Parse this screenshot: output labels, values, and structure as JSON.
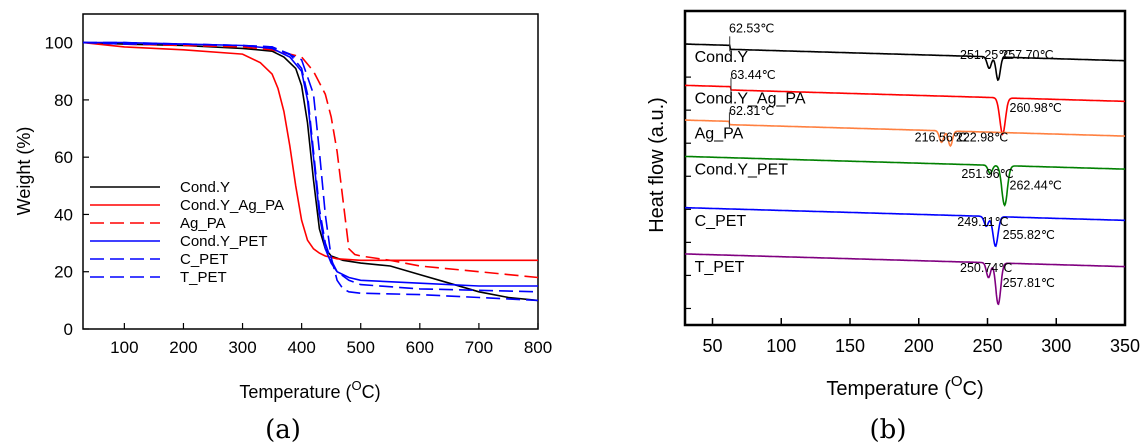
{
  "chart_data": [
    {
      "panel": "(a)",
      "type": "line",
      "xlabel": "Temperature (",
      "xlabel_sup": "O",
      "xlabel_tail": "C)",
      "ylabel": "Weight (%)",
      "xlim": [
        30,
        800
      ],
      "ylim": [
        0,
        110
      ],
      "xticks": [
        100,
        200,
        300,
        400,
        500,
        600,
        700,
        800
      ],
      "yticks": [
        0,
        20,
        40,
        60,
        80,
        100
      ],
      "legend_position": "bottom-left",
      "series": [
        {
          "name": "Cond.Y",
          "color": "#000000",
          "dash": "solid",
          "x": [
            30,
            100,
            200,
            300,
            350,
            370,
            390,
            400,
            410,
            420,
            430,
            440,
            450,
            470,
            500,
            550,
            600,
            650,
            700,
            750,
            800
          ],
          "y": [
            100,
            99.5,
            99,
            98,
            97,
            95,
            91,
            85,
            72,
            52,
            35,
            28,
            25.5,
            24,
            23,
            22,
            19,
            16,
            13,
            11,
            10
          ]
        },
        {
          "name": "Cond.Y_Ag_PA",
          "color": "#ff0000",
          "dash": "solid",
          "x": [
            30,
            100,
            200,
            300,
            330,
            350,
            360,
            370,
            380,
            390,
            400,
            410,
            420,
            430,
            440,
            460,
            500,
            600,
            700,
            800
          ],
          "y": [
            100,
            98.5,
            97.5,
            96,
            93,
            89,
            84,
            76,
            64,
            50,
            38,
            31,
            28,
            26.5,
            25.5,
            24.5,
            24,
            24,
            24,
            24
          ]
        },
        {
          "name": "Ag_PA",
          "color": "#ff0000",
          "dash": "dashed",
          "x": [
            30,
            100,
            200,
            300,
            350,
            400,
            420,
            440,
            450,
            460,
            470,
            480,
            490,
            500,
            550,
            600,
            700,
            800
          ],
          "y": [
            100,
            99.5,
            99,
            98.5,
            97.5,
            95,
            90,
            82,
            74,
            62,
            45,
            28,
            26,
            25.5,
            24,
            22,
            20,
            18
          ]
        },
        {
          "name": "Cond.Y_PET",
          "color": "#0000ff",
          "dash": "solid",
          "x": [
            30,
            100,
            200,
            300,
            350,
            380,
            400,
            410,
            420,
            430,
            440,
            450,
            460,
            480,
            500,
            600,
            700,
            800
          ],
          "y": [
            100,
            100,
            99.5,
            99,
            98,
            95,
            90,
            80,
            60,
            40,
            28,
            23,
            20,
            18,
            17,
            16,
            15,
            15
          ]
        },
        {
          "name": "C_PET",
          "color": "#0000ff",
          "dash": "dashed",
          "x": [
            30,
            100,
            200,
            300,
            350,
            380,
            400,
            410,
            420,
            430,
            440,
            450,
            460,
            480,
            500,
            600,
            700,
            800
          ],
          "y": [
            100,
            99.5,
            99.5,
            99,
            98.5,
            96,
            91,
            82,
            62,
            42,
            30,
            24,
            20,
            17,
            15.5,
            14,
            13.5,
            13
          ]
        },
        {
          "name": "T_PET",
          "color": "#0000ff",
          "dash": "dashed",
          "x": [
            30,
            100,
            200,
            300,
            350,
            400,
            420,
            430,
            440,
            450,
            460,
            470,
            480,
            500,
            600,
            700,
            800
          ],
          "y": [
            100,
            100,
            99.5,
            99,
            98.5,
            94,
            82,
            62,
            40,
            25,
            17,
            14,
            13,
            12.5,
            12,
            11,
            10
          ]
        }
      ]
    },
    {
      "panel": "(b)",
      "type": "line",
      "xlabel": "Temperature (",
      "xlabel_sup": "O",
      "xlabel_tail": "C)",
      "ylabel": "Heat flow (a.u.)",
      "xlim": [
        30,
        350
      ],
      "xticks": [
        50,
        100,
        150,
        200,
        250,
        300,
        350
      ],
      "y_ticks_labeled": false,
      "series": [
        {
          "name": "Cond.Y",
          "color": "#000000",
          "baseline": 9.0,
          "peaks": [
            {
              "x": 251.25,
              "depth": 0.35,
              "width": 1.5
            },
            {
              "x": 257.7,
              "depth": 0.7,
              "width": 1.5
            }
          ],
          "step": {
            "x": 62.53,
            "h": 0.12
          }
        },
        {
          "name": "Cond.Y_Ag_PA",
          "color": "#ff0000",
          "baseline": 7.75,
          "peaks": [
            {
              "x": 260.98,
              "depth": 1.1,
              "width": 2.0
            }
          ],
          "step": {
            "x": 63.44,
            "h": 0.1
          }
        },
        {
          "name": "Ag_PA",
          "color": "#ff8040",
          "baseline": 6.7,
          "peaks": [
            {
              "x": 216.56,
              "depth": 0.35,
              "width": 1.5
            },
            {
              "x": 222.98,
              "depth": 0.45,
              "width": 1.5
            }
          ],
          "step": {
            "x": 62.31,
            "h": 0.1
          }
        },
        {
          "name": "Cond.Y_PET",
          "color": "#008000",
          "baseline": 5.6,
          "peaks": [
            {
              "x": 251.96,
              "depth": 0.25,
              "width": 1.5
            },
            {
              "x": 262.44,
              "depth": 1.2,
              "width": 2.0
            }
          ]
        },
        {
          "name": "C_PET",
          "color": "#0000ff",
          "baseline": 4.05,
          "peaks": [
            {
              "x": 249.11,
              "depth": 0.3,
              "width": 1.5
            },
            {
              "x": 255.82,
              "depth": 0.9,
              "width": 1.8
            }
          ]
        },
        {
          "name": "T_PET",
          "color": "#800080",
          "baseline": 2.65,
          "peaks": [
            {
              "x": 250.74,
              "depth": 0.45,
              "width": 1.5
            },
            {
              "x": 257.81,
              "depth": 1.25,
              "width": 1.8
            }
          ]
        }
      ],
      "annotations": [
        {
          "text": "62.53℃",
          "x": 62,
          "y": 9.35
        },
        {
          "text": "251.25℃",
          "x": 230,
          "y": 8.55
        },
        {
          "text": "257.70℃",
          "x": 260,
          "y": 8.55
        },
        {
          "text": "63.44℃",
          "x": 63,
          "y": 7.95
        },
        {
          "text": "260.98℃",
          "x": 266,
          "y": 6.95
        },
        {
          "text": "62.31℃",
          "x": 62,
          "y": 6.85
        },
        {
          "text": "216.56℃",
          "x": 197,
          "y": 6.05
        },
        {
          "text": "222.98℃",
          "x": 227,
          "y": 6.05
        },
        {
          "text": "251.96℃",
          "x": 231,
          "y": 4.95
        },
        {
          "text": "262.44℃",
          "x": 266,
          "y": 4.6
        },
        {
          "text": "249.11℃",
          "x": 228,
          "y": 3.5
        },
        {
          "text": "255.82℃",
          "x": 261,
          "y": 3.1
        },
        {
          "text": "250.74℃",
          "x": 230,
          "y": 2.1
        },
        {
          "text": "257.81℃",
          "x": 261,
          "y": 1.65
        }
      ]
    }
  ]
}
